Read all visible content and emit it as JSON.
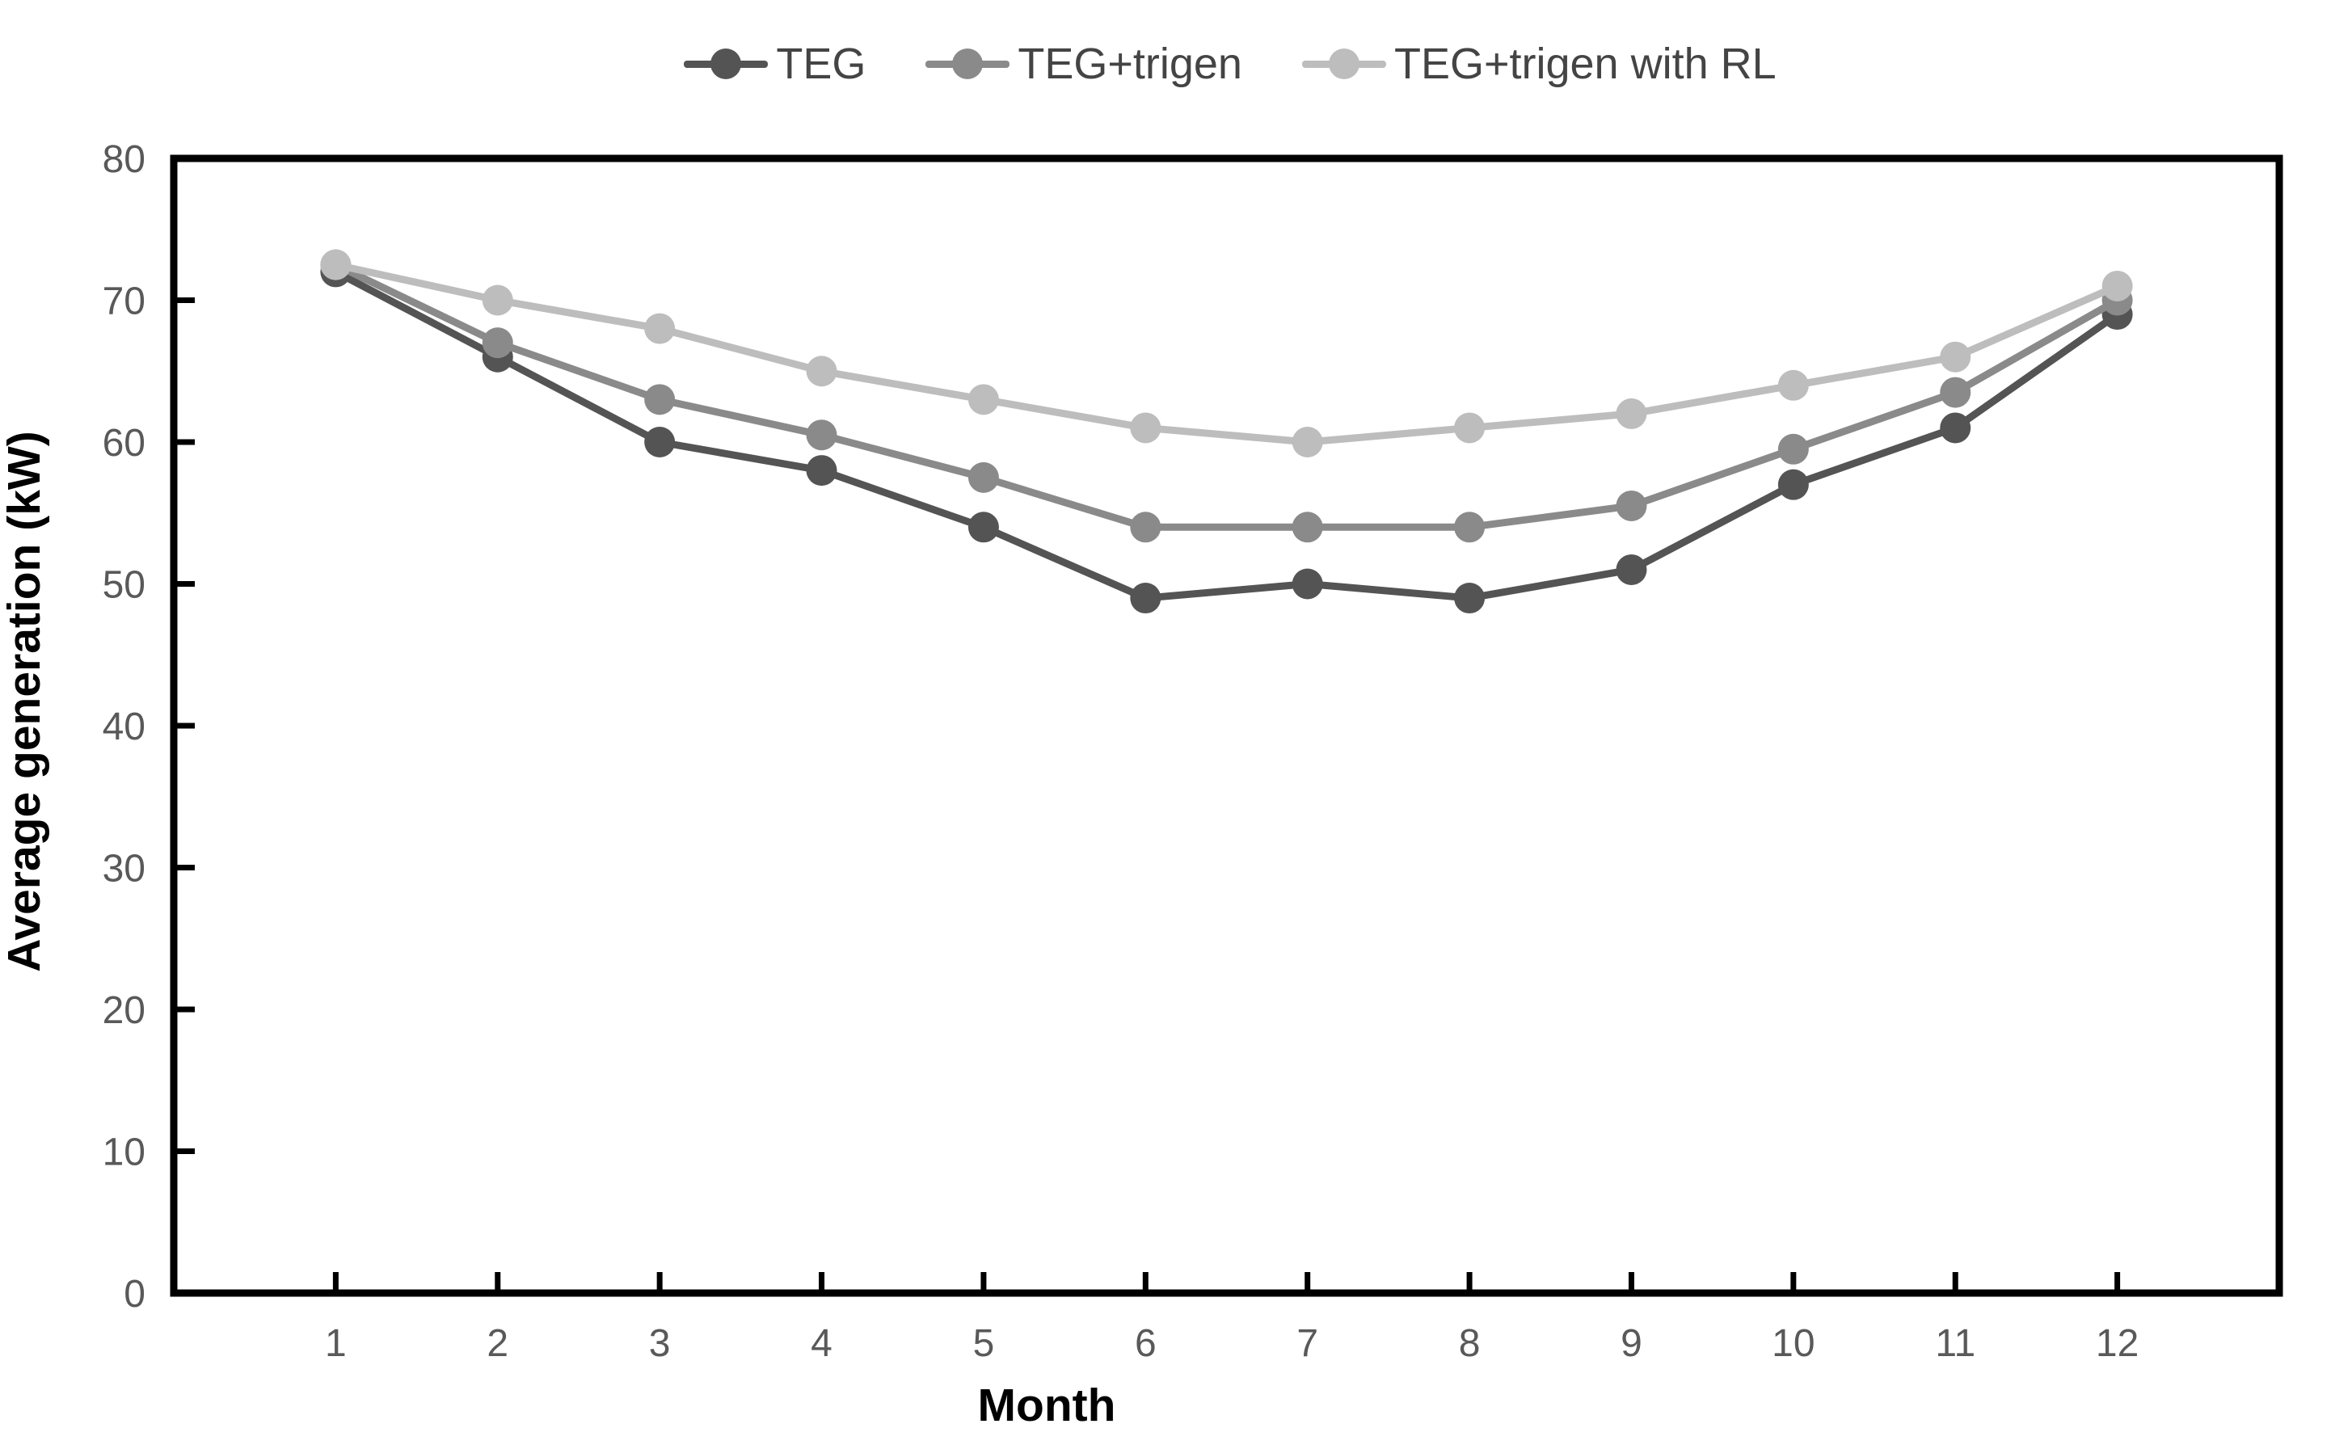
{
  "chart_data": {
    "type": "line",
    "title": "",
    "xlabel": "Month",
    "ylabel": "Average generation (kW)",
    "categories": [
      1,
      2,
      3,
      4,
      5,
      6,
      7,
      8,
      9,
      10,
      11,
      12
    ],
    "ylim": [
      0,
      80
    ],
    "yticks": [
      0,
      10,
      20,
      30,
      40,
      50,
      60,
      70,
      80
    ],
    "grid": false,
    "legend_position": "top-center",
    "marker": "circle",
    "series": [
      {
        "name": "TEG",
        "color": "#545454",
        "values": [
          72,
          66,
          60,
          58,
          54,
          49,
          50,
          49,
          51,
          57,
          61,
          69
        ]
      },
      {
        "name": "TEG+trigen",
        "color": "#8a8a8a",
        "values": [
          72.5,
          67,
          63,
          60.5,
          57.5,
          54,
          54,
          54,
          55.5,
          59.5,
          63.5,
          70
        ]
      },
      {
        "name": "TEG+trigen with RL",
        "color": "#bdbdbd",
        "values": [
          72.5,
          70,
          68,
          65,
          63,
          61,
          60,
          61,
          62,
          64,
          66,
          71
        ]
      }
    ]
  },
  "style": {
    "axis_color": "#000000",
    "tick_label_color": "#595959",
    "axis_title_color": "#000000",
    "background": "#ffffff"
  }
}
